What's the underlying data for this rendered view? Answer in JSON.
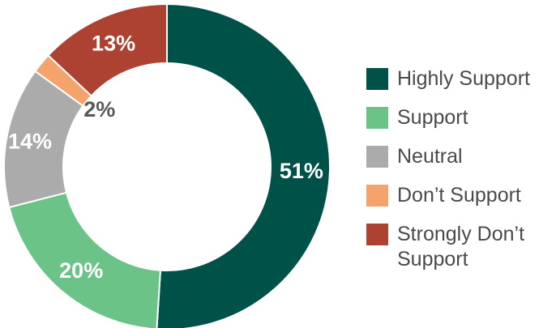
{
  "chart_data": {
    "type": "pie",
    "categories": [
      "Highly Support",
      "Support",
      "Neutral",
      "Don’t Support",
      "Strongly Don’t Support"
    ],
    "values": [
      51,
      20,
      14,
      2,
      13
    ],
    "value_labels": [
      "51%",
      "20%",
      "14%",
      "2%",
      "13%"
    ],
    "colors": [
      "#005249",
      "#6cc388",
      "#ababab",
      "#f4a36c",
      "#ad4132"
    ],
    "label_colors": [
      "#ffffff",
      "#ffffff",
      "#ffffff",
      "#595959",
      "#ffffff"
    ],
    "donut": true,
    "legend_position": "right"
  }
}
